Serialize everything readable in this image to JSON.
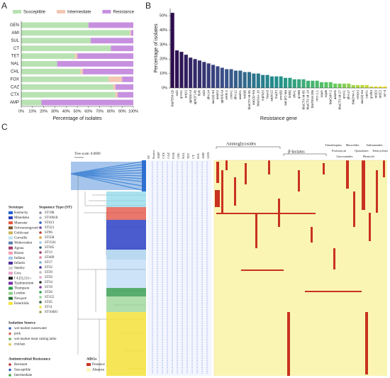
{
  "charts": [
    {
      "type": "stacked-hbar",
      "panel": "A",
      "categories": [
        "GEN",
        "AMI",
        "SUL",
        "CT",
        "TET",
        "NAL",
        "CHL",
        "FOX",
        "CAZ",
        "CTX",
        "AMP"
      ],
      "series": [
        {
          "name": "Susceptible",
          "color": "#b8e2b2",
          "values": [
            60,
            97,
            62,
            80,
            48,
            32,
            53,
            78,
            82,
            84,
            18
          ]
        },
        {
          "name": "Intermediate",
          "color": "#f3c7b3",
          "values": [
            0,
            1,
            0,
            0,
            2,
            0,
            2,
            12,
            2,
            2,
            0
          ]
        },
        {
          "name": "Resistance",
          "color": "#c690df",
          "values": [
            40,
            2,
            38,
            20,
            50,
            68,
            45,
            10,
            16,
            14,
            82
          ]
        }
      ],
      "xlim": [
        0,
        100
      ],
      "xticks": [
        {
          "value": 0,
          "label": "0%"
        },
        {
          "value": 10,
          "label": "10%"
        },
        {
          "value": 20,
          "label": "20%"
        },
        {
          "value": 30,
          "label": "30%"
        },
        {
          "value": 40,
          "label": "40%"
        },
        {
          "value": 50,
          "label": "50%"
        },
        {
          "value": 60,
          "label": "60%"
        },
        {
          "value": 70,
          "label": "70%"
        },
        {
          "value": 80,
          "label": "80%"
        },
        {
          "value": 90,
          "label": "90%"
        },
        {
          "value": 100,
          "label": "100%"
        }
      ],
      "x_label": "Percentage of isolates",
      "legend": "top"
    },
    {
      "type": "bar",
      "panel": "B",
      "categories": [
        "blaTEM-1B",
        "sul2",
        "qnrS1",
        "tet(A)",
        "aph(6)-Id",
        "aph(3'')-Ib",
        "floR",
        "sul3",
        "dfrA14",
        "aac(3)-IId",
        "aadA2",
        "aph(4)-Ia",
        "ARR-2",
        "cmlA1",
        "dfrA12",
        "aadA1",
        "tet(M)",
        "blaCTX-M-55",
        "aac(3)-IVa",
        "blaOXA-10",
        "mph(A)",
        "fosA3",
        "aadA22",
        "lnu(F)",
        "erm(B)",
        "aac(6')-Iaa",
        "tet(B)",
        "dfrA1",
        "qnrB6",
        "blaCTX-M-65",
        "blaCTX-M-14",
        "blaTEM-206",
        "mcr-1.1",
        "oqxA",
        "oqxB",
        "blaCMY-2",
        "aadA5",
        "blaCTX-M-27",
        "qnrA1",
        "dfrA17",
        "blaDHA-1",
        "ere(A)",
        "aac(3)-IIa",
        "catA1",
        "qnrB4",
        "tet(D)",
        "tet(C)",
        "arr-3"
      ],
      "values": [
        52,
        26,
        25,
        23,
        21,
        20,
        19,
        18,
        17,
        16,
        15,
        14,
        13,
        13,
        12,
        12,
        11,
        11,
        10,
        10,
        9,
        9,
        8,
        8,
        8,
        7,
        7,
        6,
        6,
        6,
        5,
        5,
        5,
        4,
        4,
        4,
        3,
        3,
        3,
        3,
        2,
        2,
        2,
        2,
        1,
        1,
        1,
        1
      ],
      "color_scale": [
        "#2d0b4e",
        "#3b528b",
        "#21918c",
        "#5ec962",
        "#fde725"
      ],
      "ylim": [
        0,
        55
      ],
      "yticks": [
        {
          "value": 0,
          "label": "0%"
        },
        {
          "value": 10,
          "label": "10%"
        },
        {
          "value": 20,
          "label": "20%"
        },
        {
          "value": 30,
          "label": "30%"
        },
        {
          "value": 40,
          "label": "40%"
        },
        {
          "value": 50,
          "label": "50%"
        }
      ],
      "x_label": "Resistance gene",
      "y_label": "Percentage of isolates"
    }
  ],
  "panel_labels": [
    "A",
    "B",
    "C"
  ],
  "tree": {
    "scale_label": "Tree scale: 0.0009"
  },
  "metadata_columns": [
    "ST",
    "Source",
    "AMP",
    "CTX",
    "CAZ",
    "FOX",
    "CHL",
    "NAL",
    "TET",
    "CT",
    "SUL",
    "AMI",
    "GEN"
  ],
  "gene_classes": [
    "Aminoglycosides",
    "β-lactams",
    "Trimethoprim",
    "Fosfomycin",
    "Lincosamides",
    "Macrolides",
    "Quinolones",
    "Phenicols",
    "Sulfonamides",
    "Tetracyclines"
  ],
  "legend": {
    "serotype": {
      "title": "Serotype",
      "items": [
        {
          "name": "Kentucky",
          "color": "#1f5fd6"
        },
        {
          "name": "Mbandaka",
          "color": "#2b3fb5"
        },
        {
          "name": "Muenster",
          "color": "#e3553d"
        },
        {
          "name": "Schwarzengrund",
          "color": "#7a5a2a"
        },
        {
          "name": "Goldcoast",
          "color": "#c9b45a"
        },
        {
          "name": "Corvallis",
          "color": "#bde3f2"
        },
        {
          "name": "Weltevreden",
          "color": "#5a7fb0"
        },
        {
          "name": "Agona",
          "color": "#a23c6a"
        },
        {
          "name": "Rissen",
          "color": "#f29bb0"
        },
        {
          "name": "Indiana",
          "color": "#9ec7e8"
        },
        {
          "name": "Infantis",
          "color": "#4a2fa0"
        },
        {
          "name": "Stanley",
          "color": "#d0d0d0"
        },
        {
          "name": "Give",
          "color": "#e8a0c8"
        },
        {
          "name": "I 4,[5],12:i:-",
          "color": "#222222"
        },
        {
          "name": "Typhimurium",
          "color": "#7b2fa8"
        },
        {
          "name": "Thompson",
          "color": "#2e9a4a"
        },
        {
          "name": "London",
          "color": "#8fd18a"
        },
        {
          "name": "Newport",
          "color": "#2a6e3a"
        },
        {
          "name": "Enteritidis",
          "color": "#f5e23a"
        }
      ]
    },
    "sequence_type": {
      "title": "Sequence Type (ST)",
      "items": [
        {
          "name": "ST198",
          "color": "#8a8aa8"
        },
        {
          "name": "ST10618",
          "color": "#b0b0c8"
        },
        {
          "name": "ST413",
          "color": "#3060c0"
        },
        {
          "name": "ST321",
          "color": "#6a4aa0"
        },
        {
          "name": "ST96",
          "color": "#c04040"
        },
        {
          "name": "ST358",
          "color": "#d8a040"
        },
        {
          "name": "ST1541",
          "color": "#a0c8e0"
        },
        {
          "name": "ST365",
          "color": "#406080"
        },
        {
          "name": "ST13",
          "color": "#a04070"
        },
        {
          "name": "ST469",
          "color": "#e080a0"
        },
        {
          "name": "ST17",
          "color": "#80b0d8"
        },
        {
          "name": "ST32",
          "color": "#5030a0"
        },
        {
          "name": "ST29",
          "color": "#b8b8b8"
        },
        {
          "name": "ST50",
          "color": "#e0a0d0"
        },
        {
          "name": "ST34",
          "color": "#303030"
        },
        {
          "name": "ST19",
          "color": "#8040a0"
        },
        {
          "name": "ST26",
          "color": "#30a050"
        },
        {
          "name": "ST155",
          "color": "#90d090"
        },
        {
          "name": "ST45",
          "color": "#306040"
        },
        {
          "name": "ST11",
          "color": "#f0e040"
        },
        {
          "name": "ST10481",
          "color": "#a0a060"
        }
      ]
    },
    "isolation_source": {
      "title": "Isolation Source",
      "items": [
        {
          "name": "wet market wastewater",
          "color": "#4060c0"
        },
        {
          "name": "pork",
          "color": "#e06060"
        },
        {
          "name": "wet market meat cutting table",
          "color": "#60b060"
        },
        {
          "name": "chicken",
          "color": "#e0c040"
        }
      ]
    },
    "amr": {
      "title": "Antimicrobial Resistance",
      "items": [
        {
          "name": "Resistant",
          "color": "#c03030"
        },
        {
          "name": "Susceptible",
          "color": "#3060c0"
        },
        {
          "name": "Intermediate",
          "color": "#40a040"
        }
      ]
    },
    "args": {
      "title": "ARGs",
      "items": [
        {
          "name": "Presence",
          "color": "#c8321e"
        },
        {
          "name": "Absence",
          "color": "#fbf5b4"
        }
      ]
    }
  }
}
